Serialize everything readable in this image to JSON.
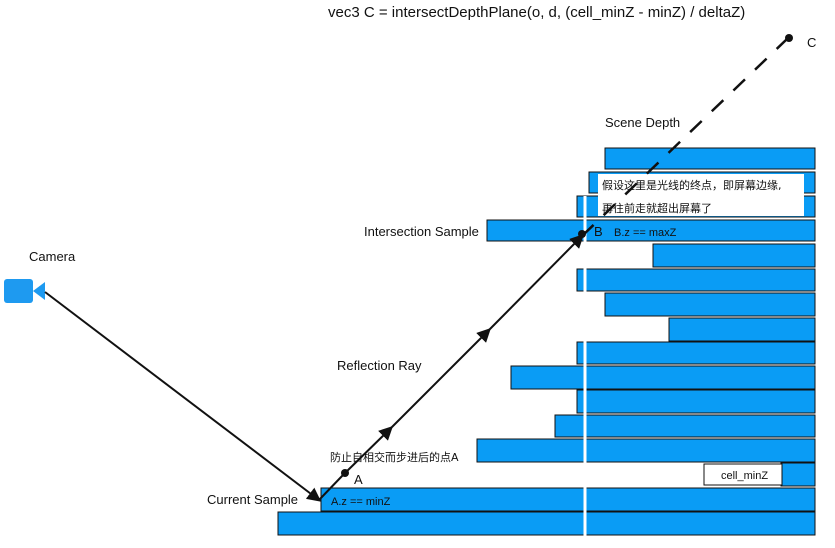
{
  "formula": "vec3 C = intersectDepthPlane(o, d, (cell_minZ - minZ) / deltaZ)",
  "labels": {
    "point_c": "C",
    "scene_depth": "Scene Depth",
    "intersection_sample": "Intersection Sample",
    "point_b": "B",
    "b_condition": "B.z == maxZ",
    "camera": "Camera",
    "reflection_ray": "Reflection Ray",
    "offset_note": "防止自相交而步进后的点A",
    "point_a": "A",
    "cell_minz": "cell_minZ",
    "current_sample": "Current Sample",
    "a_condition": "A.z == minZ",
    "screen_edge_note_1": "假设这里是光线的终点，即屏幕边缘,",
    "screen_edge_note_2": "再往前走就超出屏幕了"
  },
  "colors": {
    "depth_fill": "#0a9cf5",
    "camera": "#1e9af0",
    "ray": "#111111"
  }
}
